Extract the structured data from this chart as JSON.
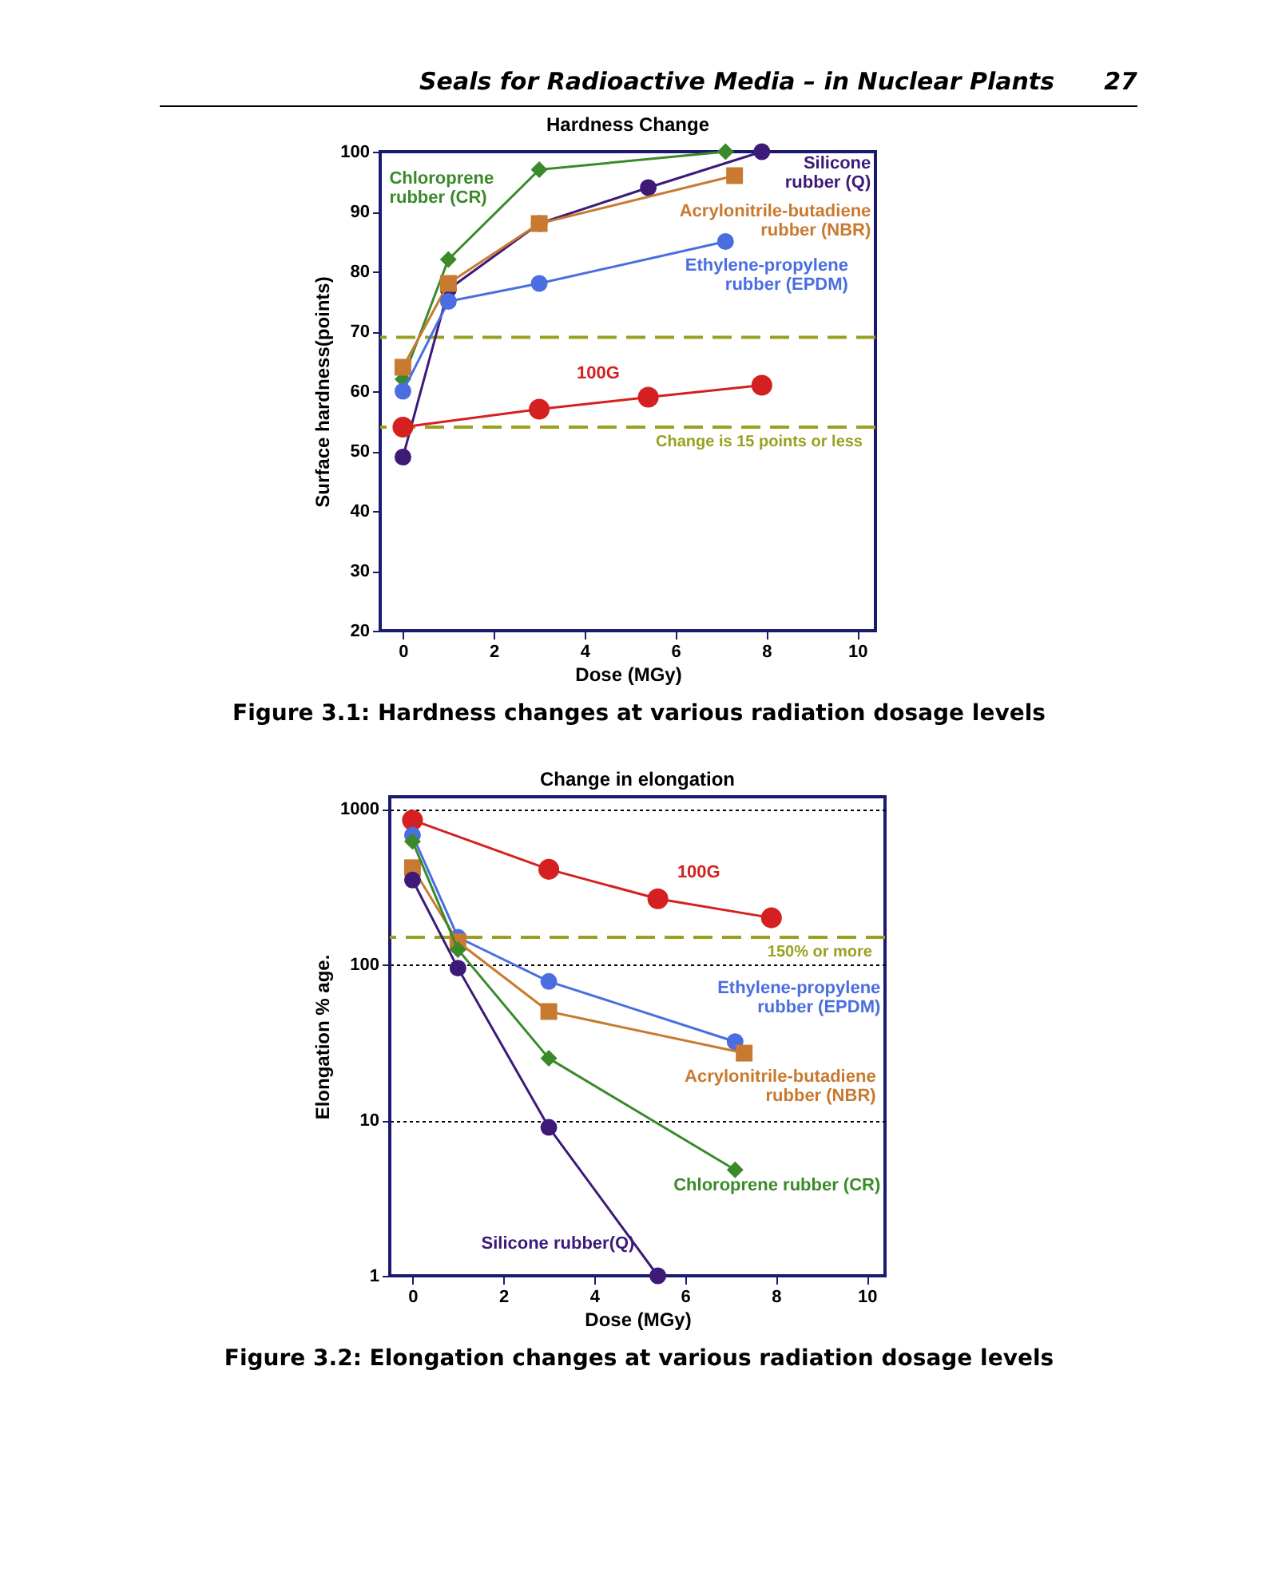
{
  "chart_data": [
    {
      "type": "line",
      "title": "Hardness Change",
      "xlabel": "Dose (MGy)",
      "ylabel": "Surface hardness(points)",
      "xlim": [
        -0.5,
        10.4
      ],
      "xticks": [
        0,
        2,
        4,
        6,
        8,
        10
      ],
      "ylim": [
        20,
        100
      ],
      "yticks": [
        20,
        30,
        40,
        50,
        60,
        70,
        80,
        90,
        100
      ],
      "legend": false,
      "grid": false,
      "annotations": [
        "Seals for Radioactive Media – in Nuclear Plants",
        "27",
        "Figure 3.1: Hardness changes at various radiation dosage levels"
      ],
      "ref_lines": [
        {
          "axis": "y",
          "value": 69,
          "color": "#9aa020",
          "line_style": "dashed"
        },
        {
          "axis": "y",
          "value": 54,
          "label": "Change is 15 points or less",
          "color": "#9aa020",
          "line_style": "dashed"
        }
      ],
      "series": [
        {
          "name": "Chloroprene rubber (CR)",
          "color": "#3a8a2a",
          "marker": "diamond",
          "x": [
            0,
            1,
            3,
            7.1
          ],
          "values": [
            62,
            82,
            97,
            100
          ]
        },
        {
          "name": "Silicone rubber (Q)",
          "color": "#3d1a78",
          "marker": "circle",
          "x": [
            0,
            1,
            3,
            5.4,
            7.9
          ],
          "values": [
            49,
            77,
            88,
            94,
            100
          ]
        },
        {
          "name": "Acrylonitrile-butadiene rubber (NBR)",
          "color": "#c87a30",
          "marker": "square",
          "x": [
            0,
            1,
            3,
            7.3
          ],
          "values": [
            64,
            78,
            88,
            96
          ]
        },
        {
          "name": "Ethylene-propylene rubber (EPDM)",
          "color": "#4a6ee0",
          "marker": "circle",
          "x": [
            0,
            1,
            3,
            7.1
          ],
          "values": [
            60,
            75,
            78,
            85
          ]
        },
        {
          "name": "100G",
          "color": "#d42020",
          "marker": "circle",
          "x": [
            0,
            3,
            5.4,
            7.9
          ],
          "values": [
            54,
            57,
            59,
            61
          ]
        }
      ]
    },
    {
      "type": "line",
      "title": "Change in elongation",
      "xlabel": "Dose (MGy)",
      "ylabel": "Elongation % age.",
      "xlim": [
        -0.5,
        10.4
      ],
      "xticks": [
        0,
        2,
        4,
        6,
        8,
        10
      ],
      "ylim": [
        1,
        1200
      ],
      "yticks": [
        1,
        10,
        100,
        1000
      ],
      "log": "y",
      "legend": false,
      "grid": "y",
      "annotations": [
        "Figure 3.2: Elongation changes at various radiation dosage levels"
      ],
      "ref_lines": [
        {
          "axis": "y",
          "value": 150,
          "label": "150% or more",
          "color": "#9aa020",
          "line_style": "dashed"
        }
      ],
      "series": [
        {
          "name": "100G",
          "color": "#d42020",
          "marker": "circle",
          "x": [
            0,
            3,
            5.4,
            7.9
          ],
          "values": [
            850,
            410,
            265,
            200
          ]
        },
        {
          "name": "Ethylene-propylene rubber (EPDM)",
          "color": "#4a6ee0",
          "marker": "circle",
          "x": [
            0,
            1,
            3,
            7.1
          ],
          "values": [
            680,
            150,
            78,
            32
          ]
        },
        {
          "name": "Acrylonitrile-butadiene rubber (NBR)",
          "color": "#c87a30",
          "marker": "square",
          "x": [
            0,
            1,
            3,
            7.3
          ],
          "values": [
            420,
            140,
            50,
            27
          ]
        },
        {
          "name": "Chloroprene rubber (CR)",
          "color": "#3a8a2a",
          "marker": "diamond",
          "x": [
            0,
            1,
            3,
            7.1
          ],
          "values": [
            620,
            125,
            25,
            4.8
          ]
        },
        {
          "name": "Silicone rubber(Q)",
          "color": "#3d1a78",
          "marker": "circle",
          "x": [
            0,
            1,
            3,
            5.4
          ],
          "values": [
            350,
            95,
            9,
            1
          ]
        }
      ]
    }
  ]
}
